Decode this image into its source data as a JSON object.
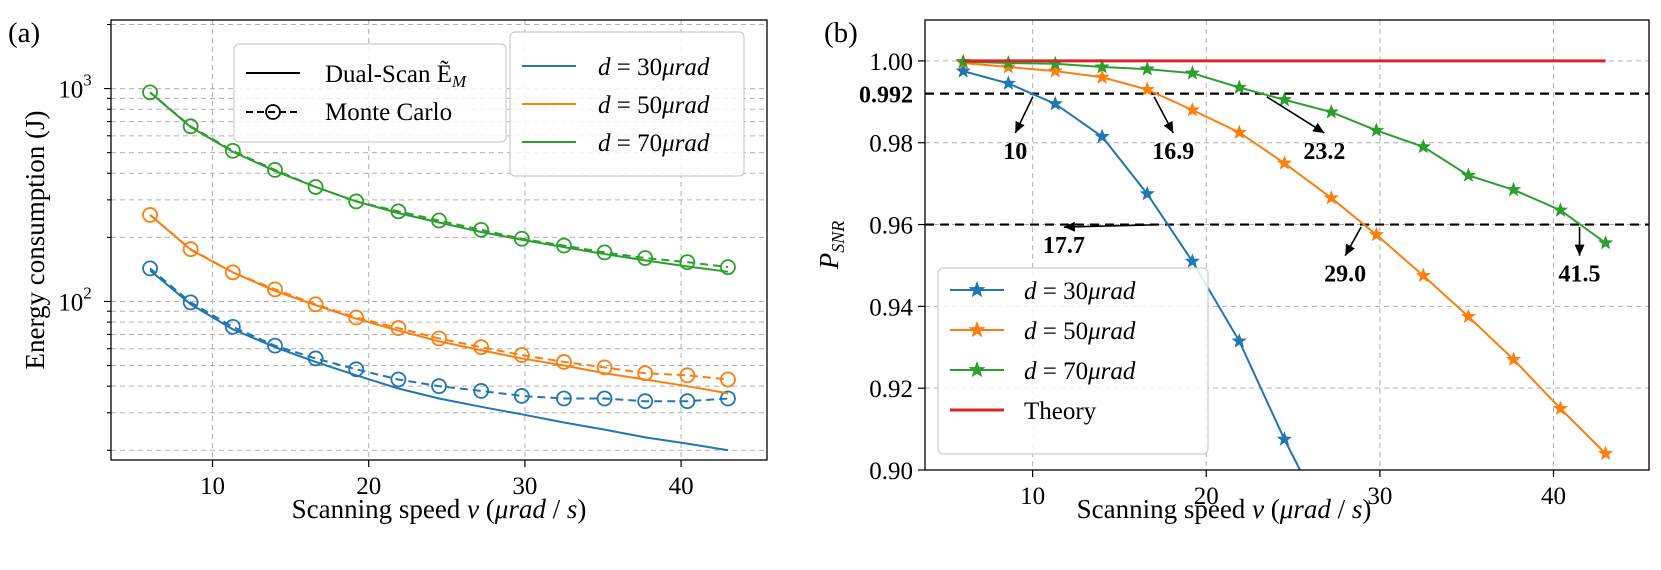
{
  "chart_data": [
    {
      "type": "line",
      "panel_label": "(a)",
      "xlabel": "Scanning speed v (μrad / s)",
      "ylabel": "Energy consumption (J)",
      "xlim": [
        3.5,
        45.5
      ],
      "ylim": [
        18,
        2100
      ],
      "yscale": "log",
      "xticks": [
        10,
        20,
        30,
        40
      ],
      "yticks": [
        {
          "value": 100,
          "base": "10",
          "exp": "2"
        },
        {
          "value": 1000,
          "base": "10",
          "exp": "3"
        }
      ],
      "grid": true,
      "legend_styles": [
        {
          "label": "Dual-Scan Ẽ",
          "sub": "M",
          "style": "solid"
        },
        {
          "label": "Monte Carlo",
          "style": "dashed-circle"
        }
      ],
      "legend_series": [
        {
          "prefix": "d",
          "eq": " = ",
          "value": "30",
          "unit": "μrad",
          "color": "#1f77b4"
        },
        {
          "prefix": "d",
          "eq": " = ",
          "value": "50",
          "unit": "μrad",
          "color": "#ff7f0e"
        },
        {
          "prefix": "d",
          "eq": " = ",
          "value": "70",
          "unit": "μrad",
          "color": "#2ca02c"
        }
      ],
      "series": [
        {
          "name": "d=30μrad",
          "color": "#1f77b4",
          "theory_x": [
            6,
            8.6,
            11.3,
            14,
            16.6,
            19.2,
            21.9,
            24.5,
            27.2,
            29.8,
            32.5,
            35.1,
            37.7,
            40.4,
            43
          ],
          "theory_y": [
            140,
            97,
            74,
            61,
            52,
            45,
            39,
            35,
            32,
            29.5,
            27,
            25,
            23,
            21.5,
            20
          ],
          "mc_x": [
            6,
            8.6,
            11.3,
            14,
            16.6,
            19.2,
            21.9,
            24.5,
            27.2,
            29.8,
            32.5,
            35.1,
            37.7,
            40.4,
            43
          ],
          "mc_y": [
            143,
            99,
            76,
            62,
            54,
            48,
            43,
            40,
            38,
            36,
            35,
            35,
            34,
            34,
            35
          ]
        },
        {
          "name": "d=50μrad",
          "color": "#ff7f0e",
          "theory_x": [
            6,
            8.6,
            11.3,
            14,
            16.6,
            19.2,
            21.9,
            24.5,
            27.2,
            29.8,
            32.5,
            35.1,
            37.7,
            40.4,
            43
          ],
          "theory_y": [
            255,
            175,
            137,
            112,
            96,
            83,
            73,
            65,
            59,
            54,
            50,
            46,
            43,
            40,
            37
          ],
          "mc_x": [
            6,
            8.6,
            11.3,
            14,
            16.6,
            19.2,
            21.9,
            24.5,
            27.2,
            29.8,
            32.5,
            35.1,
            37.7,
            40.4,
            43
          ],
          "mc_y": [
            255,
            176,
            137,
            114,
            97,
            84,
            75,
            67,
            61,
            56,
            52,
            49,
            46,
            45,
            43
          ]
        },
        {
          "name": "d=70μrad",
          "color": "#2ca02c",
          "theory_x": [
            6,
            8.6,
            11.3,
            14,
            16.6,
            19.2,
            21.9,
            24.5,
            27.2,
            29.8,
            32.5,
            35.1,
            37.7,
            40.4,
            43
          ],
          "theory_y": [
            960,
            660,
            505,
            410,
            345,
            295,
            260,
            235,
            212,
            195,
            180,
            167,
            156,
            146,
            138
          ],
          "mc_x": [
            6,
            8.6,
            11.3,
            14,
            16.6,
            19.2,
            21.9,
            24.5,
            27.2,
            29.8,
            32.5,
            35.1,
            37.7,
            40.4,
            43
          ],
          "mc_y": [
            960,
            665,
            510,
            415,
            345,
            295,
            265,
            240,
            217,
            197,
            183,
            170,
            160,
            153,
            145
          ]
        }
      ]
    },
    {
      "type": "line",
      "panel_label": "(b)",
      "xlabel": "Scanning speed v (μrad / s)",
      "ylabel": "P",
      "ylabel_sub": "SNR",
      "xlim": [
        3.8,
        45.5
      ],
      "ylim": [
        0.9,
        1.01
      ],
      "xticks": [
        10,
        20,
        30,
        40
      ],
      "yticks": [
        0.9,
        0.92,
        0.94,
        0.96,
        0.98,
        1.0
      ],
      "ytick_labels": [
        "0.90",
        "0.92",
        "0.94",
        "0.96",
        "0.98",
        "1.00"
      ],
      "grid": true,
      "threshold_lines": [
        {
          "y": 0.992,
          "label": "0.992",
          "style": "dashed"
        },
        {
          "y": 0.96,
          "style": "dashed"
        }
      ],
      "annotations": [
        {
          "text": "10",
          "point": [
            10.1,
            0.992
          ],
          "text_at": [
            9.0,
            0.9775
          ]
        },
        {
          "text": "16.9",
          "point": [
            16.9,
            0.992
          ],
          "text_at": [
            18.1,
            0.9775
          ]
        },
        {
          "text": "23.2",
          "point": [
            23.2,
            0.992
          ],
          "text_at": [
            26.8,
            0.9775
          ]
        },
        {
          "text": "17.7",
          "point": [
            17.7,
            0.96
          ],
          "text_at": [
            11.8,
            0.9545
          ]
        },
        {
          "text": "29.0",
          "point": [
            29.0,
            0.96
          ],
          "text_at": [
            28.0,
            0.9475
          ]
        },
        {
          "text": "41.5",
          "point": [
            41.5,
            0.96
          ],
          "text_at": [
            41.5,
            0.9475
          ]
        }
      ],
      "legend_series": [
        {
          "prefix": "d",
          "eq": " = ",
          "value": "30",
          "unit": "μrad",
          "color": "#1f77b4",
          "marker": "star"
        },
        {
          "prefix": "d",
          "eq": " = ",
          "value": "50",
          "unit": "μrad",
          "color": "#ff7f0e",
          "marker": "star"
        },
        {
          "prefix": "d",
          "eq": " = ",
          "value": "70",
          "unit": "μrad",
          "color": "#2ca02c",
          "marker": "star"
        },
        {
          "label": "Theory",
          "color": "#d62728",
          "marker": "none"
        }
      ],
      "series": [
        {
          "name": "d=30μrad",
          "color": "#1f77b4",
          "x": [
            6,
            8.6,
            11.3,
            14,
            16.6,
            19.2,
            21.9,
            24.5,
            25.4
          ],
          "y": [
            0.9975,
            0.9945,
            0.9895,
            0.9815,
            0.9675,
            0.951,
            0.9315,
            0.9075,
            0.9
          ]
        },
        {
          "name": "d=50μrad",
          "color": "#ff7f0e",
          "x": [
            6,
            8.6,
            11.3,
            14,
            16.6,
            19.2,
            21.9,
            24.5,
            27.2,
            29.8,
            32.5,
            35.1,
            37.7,
            40.4,
            43
          ],
          "y": [
            0.9995,
            0.9985,
            0.9975,
            0.996,
            0.993,
            0.988,
            0.9825,
            0.975,
            0.9665,
            0.9575,
            0.9475,
            0.9375,
            0.927,
            0.915,
            0.904
          ]
        },
        {
          "name": "d=70μrad",
          "color": "#2ca02c",
          "x": [
            6,
            8.6,
            11.3,
            14,
            16.6,
            19.2,
            21.9,
            24.5,
            27.2,
            29.8,
            32.5,
            35.1,
            37.7,
            40.4,
            43
          ],
          "y": [
            0.9998,
            0.9995,
            0.9993,
            0.9985,
            0.998,
            0.997,
            0.9935,
            0.9905,
            0.9875,
            0.983,
            0.979,
            0.972,
            0.9685,
            0.9635,
            0.9555
          ]
        },
        {
          "name": "Theory",
          "color": "#d62728",
          "x": [
            6,
            43
          ],
          "y": [
            1.0,
            1.0
          ]
        }
      ]
    }
  ]
}
